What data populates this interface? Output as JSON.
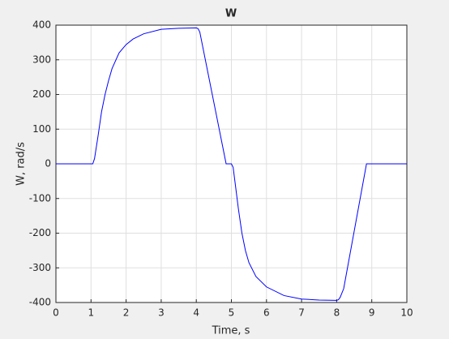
{
  "chart_data": {
    "type": "line",
    "title": "W",
    "x_label": "Time, s",
    "y_label": "W, rad/s",
    "x": [
      0,
      1,
      1.05,
      1.1,
      1.2,
      1.3,
      1.4,
      1.5,
      1.6,
      1.8,
      2,
      2.2,
      2.5,
      3,
      3.5,
      4,
      4.05,
      4.1,
      4.85,
      5,
      5.05,
      5.1,
      5.2,
      5.3,
      5.4,
      5.5,
      5.7,
      6,
      6.5,
      7,
      7.5,
      8,
      8.05,
      8.1,
      8.2,
      8.85,
      10
    ],
    "series": [
      {
        "name": "W",
        "color": "#0000ff",
        "values": [
          0,
          0,
          0,
          15,
          80,
          150,
          200,
          240,
          275,
          320,
          344,
          360,
          375,
          388,
          391,
          392,
          390,
          380,
          0,
          0,
          -10,
          -50,
          -130,
          -200,
          -250,
          -285,
          -325,
          -355,
          -380,
          -390,
          -393,
          -394,
          -392,
          -385,
          -360,
          0,
          0
        ]
      }
    ],
    "xlim": [
      0,
      10
    ],
    "xticks": [
      0,
      1,
      2,
      3,
      4,
      5,
      6,
      7,
      8,
      9,
      10
    ],
    "ylim": [
      -400,
      400
    ],
    "yticks": [
      -400,
      -300,
      -200,
      -100,
      0,
      100,
      200,
      300,
      400
    ],
    "grid": true
  }
}
